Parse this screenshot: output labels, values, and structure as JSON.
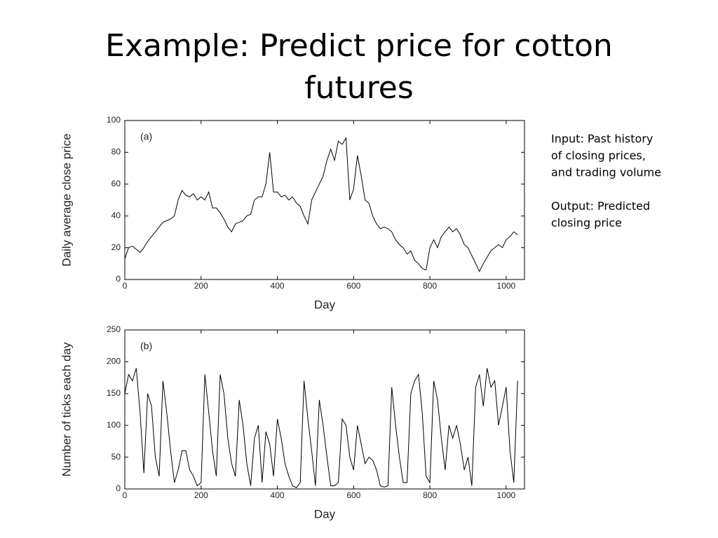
{
  "title": [
    "Example: Predict price for cotton",
    "futures"
  ],
  "notes": [
    [
      "Input: Past history",
      "of closing prices,",
      "and trading volume"
    ],
    [
      "Output: Predicted",
      "closing price"
    ]
  ],
  "chart_data": [
    {
      "type": "line",
      "annotation": "(a)",
      "x_label": "Day",
      "y_label": "Daily average close price",
      "xlim": [
        0,
        1048
      ],
      "xticks": [
        0,
        200,
        400,
        600,
        800,
        1000
      ],
      "ylim": [
        0,
        100
      ],
      "yticks": [
        0,
        20,
        40,
        60,
        80,
        100
      ],
      "x": [
        0,
        10,
        20,
        30,
        40,
        50,
        60,
        70,
        80,
        90,
        100,
        110,
        120,
        130,
        140,
        150,
        160,
        170,
        180,
        190,
        200,
        210,
        220,
        230,
        240,
        250,
        260,
        270,
        280,
        290,
        300,
        310,
        320,
        330,
        340,
        350,
        360,
        370,
        380,
        390,
        400,
        410,
        420,
        430,
        440,
        450,
        460,
        470,
        480,
        490,
        500,
        510,
        520,
        530,
        540,
        550,
        560,
        570,
        580,
        590,
        600,
        610,
        620,
        630,
        640,
        650,
        660,
        670,
        680,
        690,
        700,
        710,
        720,
        730,
        740,
        750,
        760,
        770,
        780,
        790,
        800,
        810,
        820,
        830,
        840,
        850,
        860,
        870,
        880,
        890,
        900,
        910,
        920,
        930,
        940,
        950,
        960,
        970,
        980,
        990,
        1000,
        1010,
        1020,
        1030
      ],
      "series": [
        {
          "color": "#000000",
          "values": [
            13,
            20,
            21,
            19,
            17,
            20,
            24,
            27,
            30,
            33,
            36,
            37,
            38,
            40,
            50,
            56,
            53,
            52,
            54,
            50,
            52,
            50,
            55,
            45,
            45,
            42,
            38,
            33,
            30,
            35,
            36,
            37,
            40,
            41,
            50,
            52,
            52,
            60,
            80,
            55,
            55,
            52,
            53,
            50,
            52,
            48,
            46,
            40,
            35,
            50,
            55,
            60,
            65,
            75,
            82,
            75,
            87,
            85,
            89,
            50,
            57,
            78,
            65,
            50,
            48,
            40,
            35,
            32,
            33,
            32,
            30,
            25,
            22,
            20,
            16,
            18,
            12,
            10,
            7,
            6,
            20,
            25,
            20,
            27,
            30,
            33,
            30,
            32,
            28,
            22,
            20,
            15,
            10,
            5,
            10,
            14,
            18,
            20,
            22,
            20,
            25,
            27,
            30,
            28
          ]
        }
      ]
    },
    {
      "type": "line",
      "annotation": "(b)",
      "x_label": "Day",
      "y_label": "Number of ticks each day",
      "xlim": [
        0,
        1048
      ],
      "xticks": [
        0,
        200,
        400,
        600,
        800,
        1000
      ],
      "ylim": [
        0,
        250
      ],
      "yticks": [
        0,
        50,
        100,
        150,
        200,
        250
      ],
      "x": [
        0,
        10,
        20,
        30,
        40,
        50,
        60,
        70,
        80,
        90,
        100,
        110,
        120,
        130,
        140,
        150,
        160,
        170,
        180,
        190,
        200,
        210,
        220,
        230,
        240,
        250,
        260,
        270,
        280,
        290,
        300,
        310,
        320,
        330,
        340,
        350,
        360,
        370,
        380,
        390,
        400,
        410,
        420,
        430,
        440,
        450,
        460,
        470,
        480,
        490,
        500,
        510,
        520,
        530,
        540,
        550,
        560,
        570,
        580,
        590,
        600,
        610,
        620,
        630,
        640,
        650,
        660,
        670,
        680,
        690,
        700,
        710,
        720,
        730,
        740,
        750,
        760,
        770,
        780,
        790,
        800,
        810,
        820,
        830,
        840,
        850,
        860,
        870,
        880,
        890,
        900,
        910,
        920,
        930,
        940,
        950,
        960,
        970,
        980,
        990,
        1000,
        1010,
        1020,
        1030
      ],
      "series": [
        {
          "color": "#000000",
          "values": [
            150,
            180,
            170,
            190,
            120,
            25,
            150,
            130,
            50,
            20,
            170,
            120,
            60,
            10,
            30,
            60,
            60,
            30,
            20,
            5,
            10,
            180,
            120,
            60,
            20,
            180,
            150,
            80,
            40,
            20,
            140,
            100,
            40,
            5,
            80,
            100,
            10,
            90,
            70,
            20,
            110,
            80,
            40,
            20,
            5,
            2,
            10,
            170,
            110,
            60,
            5,
            140,
            100,
            50,
            5,
            5,
            10,
            110,
            100,
            50,
            30,
            100,
            70,
            40,
            50,
            45,
            30,
            5,
            3,
            5,
            160,
            100,
            50,
            10,
            10,
            150,
            170,
            180,
            120,
            20,
            10,
            170,
            140,
            80,
            30,
            100,
            80,
            100,
            70,
            30,
            50,
            5,
            160,
            180,
            130,
            190,
            160,
            170,
            100,
            130,
            160,
            60,
            10,
            170
          ]
        }
      ]
    }
  ]
}
